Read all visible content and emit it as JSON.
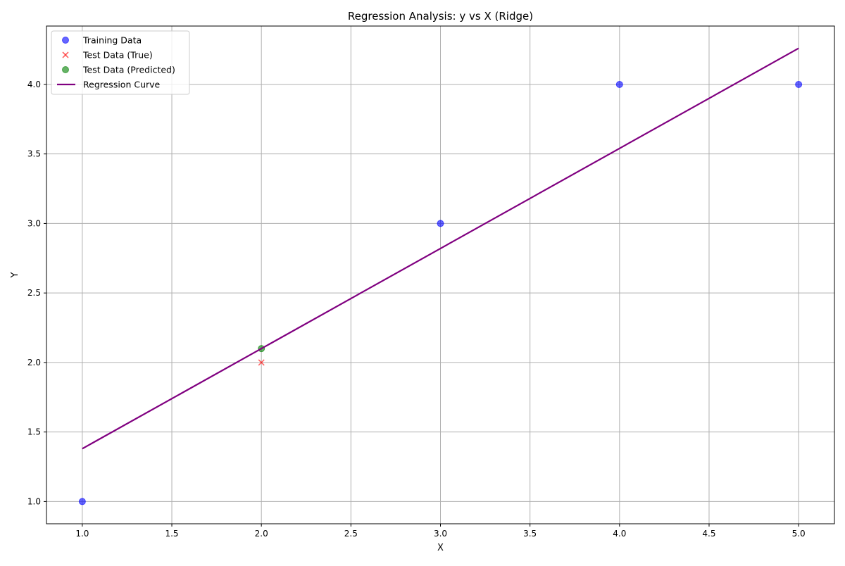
{
  "chart_data": {
    "type": "scatter",
    "title": "Regression Analysis: y vs X (Ridge)",
    "xlabel": "X",
    "ylabel": "Y",
    "xlim": [
      0.8,
      5.2
    ],
    "ylim": [
      0.84,
      4.42
    ],
    "xticks": [
      1.0,
      1.5,
      2.0,
      2.5,
      3.0,
      3.5,
      4.0,
      4.5,
      5.0
    ],
    "yticks": [
      1.0,
      1.5,
      2.0,
      2.5,
      3.0,
      3.5,
      4.0
    ],
    "xtick_labels": [
      "1.0",
      "1.5",
      "2.0",
      "2.5",
      "3.0",
      "3.5",
      "4.0",
      "4.5",
      "5.0"
    ],
    "ytick_labels": [
      "1.0",
      "1.5",
      "2.0",
      "2.5",
      "3.0",
      "3.5",
      "4.0"
    ],
    "grid": true,
    "legend_position": "top-left",
    "series": [
      {
        "name": "Training Data",
        "kind": "scatter",
        "marker": "circle",
        "color": "#0000ff",
        "x": [
          1,
          3,
          4,
          5
        ],
        "y": [
          1,
          3,
          4,
          4
        ]
      },
      {
        "name": "Test Data (True)",
        "kind": "scatter",
        "marker": "x",
        "color": "#ff0000",
        "x": [
          2
        ],
        "y": [
          2
        ]
      },
      {
        "name": "Test Data (Predicted)",
        "kind": "scatter",
        "marker": "circle",
        "color": "#008000",
        "x": [
          2
        ],
        "y": [
          2.1
        ]
      },
      {
        "name": "Regression Curve",
        "kind": "line",
        "color": "#800080",
        "x": [
          1,
          5
        ],
        "y": [
          1.38,
          4.26
        ]
      }
    ]
  }
}
